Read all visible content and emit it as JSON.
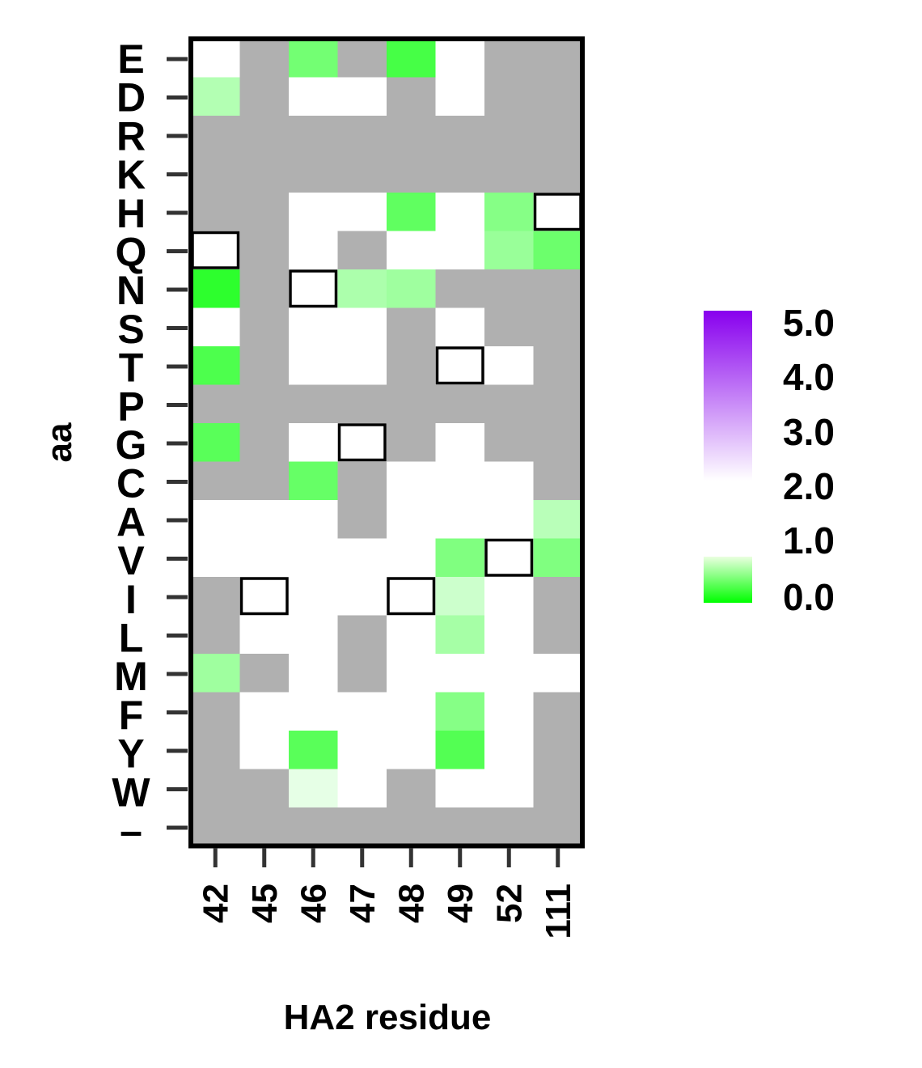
{
  "chart_data": {
    "type": "heatmap",
    "xlabel": "HA2 residue",
    "ylabel": "aa",
    "x_categories": [
      "42",
      "45",
      "46",
      "47",
      "48",
      "49",
      "52",
      "111"
    ],
    "y_categories": [
      "E",
      "D",
      "R",
      "K",
      "H",
      "Q",
      "N",
      "S",
      "T",
      "P",
      "G",
      "C",
      "A",
      "V",
      "I",
      "L",
      "M",
      "F",
      "Y",
      "W",
      "–"
    ],
    "missing_value_color": "#b0b0b0",
    "values": [
      [
        2.0,
        null,
        0.9,
        null,
        0.55,
        2.0,
        null,
        null
      ],
      [
        1.4,
        null,
        2.0,
        2.0,
        null,
        2.0,
        null,
        null
      ],
      [
        null,
        null,
        null,
        null,
        null,
        null,
        null,
        null
      ],
      [
        null,
        null,
        null,
        null,
        null,
        null,
        null,
        null
      ],
      [
        null,
        null,
        2.0,
        2.0,
        0.75,
        2.0,
        1.05,
        2.0
      ],
      [
        2.0,
        null,
        2.0,
        null,
        2.0,
        2.0,
        1.2,
        0.85
      ],
      [
        0.35,
        null,
        2.0,
        1.35,
        1.25,
        null,
        null,
        null
      ],
      [
        2.0,
        null,
        2.0,
        2.0,
        null,
        2.0,
        null,
        null
      ],
      [
        0.6,
        null,
        2.0,
        2.0,
        null,
        2.0,
        2.0,
        null
      ],
      [
        null,
        null,
        null,
        null,
        null,
        null,
        null,
        null
      ],
      [
        0.7,
        null,
        2.0,
        2.0,
        null,
        2.0,
        null,
        null
      ],
      [
        null,
        null,
        0.8,
        null,
        2.0,
        2.0,
        2.0,
        null
      ],
      [
        2.0,
        2.0,
        2.0,
        null,
        2.0,
        2.0,
        2.0,
        1.45
      ],
      [
        2.0,
        2.0,
        2.0,
        2.0,
        2.0,
        1.0,
        2.0,
        1.0
      ],
      [
        null,
        2.0,
        2.0,
        2.0,
        2.0,
        1.6,
        2.0,
        null
      ],
      [
        null,
        2.0,
        2.0,
        null,
        2.0,
        1.3,
        2.0,
        null
      ],
      [
        1.25,
        null,
        2.0,
        null,
        2.0,
        2.0,
        2.0,
        2.0
      ],
      [
        null,
        2.0,
        2.0,
        2.0,
        2.0,
        1.05,
        2.0,
        null
      ],
      [
        null,
        2.0,
        0.7,
        2.0,
        2.0,
        0.65,
        2.0,
        null
      ],
      [
        null,
        null,
        1.8,
        2.0,
        null,
        2.0,
        2.0,
        null
      ],
      [
        null,
        null,
        null,
        null,
        null,
        null,
        null,
        null
      ]
    ],
    "wildtype_cells": [
      {
        "x": "42",
        "y": "Q"
      },
      {
        "x": "45",
        "y": "I"
      },
      {
        "x": "46",
        "y": "N"
      },
      {
        "x": "47",
        "y": "G"
      },
      {
        "x": "48",
        "y": "I"
      },
      {
        "x": "49",
        "y": "T"
      },
      {
        "x": "52",
        "y": "V"
      },
      {
        "x": "111",
        "y": "H"
      }
    ],
    "colorbar": {
      "ticks": [
        "5.0",
        "4.0",
        "3.0",
        "2.0",
        "1.0",
        "0.0"
      ],
      "range": [
        0.0,
        5.0
      ],
      "low_color": "#00ff00",
      "mid_color": "#ffffff",
      "high_color": "#8800ee",
      "gap_between": [
        1.0,
        2.0
      ]
    }
  }
}
